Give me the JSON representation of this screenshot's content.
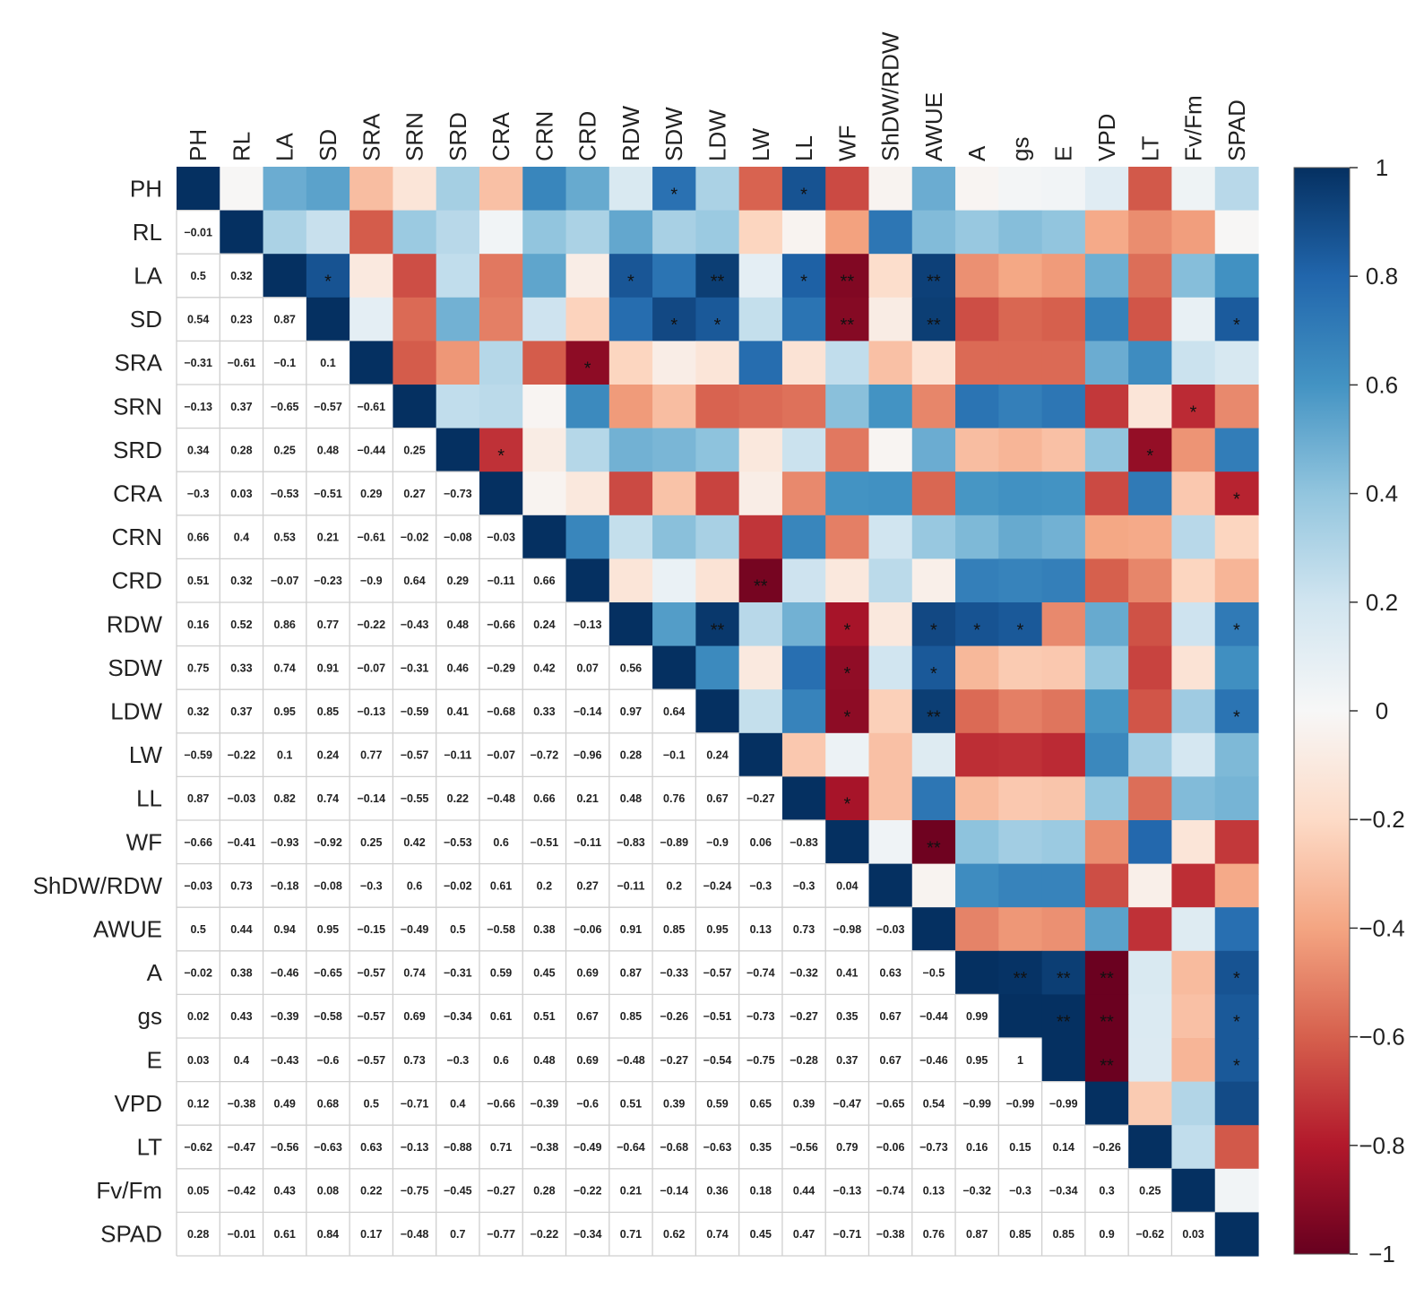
{
  "chart_data": {
    "type": "heatmap",
    "title": "",
    "variables": [
      "PH",
      "RL",
      "LA",
      "SD",
      "SRA",
      "SRN",
      "SRD",
      "CRA",
      "CRN",
      "CRD",
      "RDW",
      "SDW",
      "LDW",
      "LW",
      "LL",
      "WF",
      "ShDW/RDW",
      "AWUE",
      "A",
      "gs",
      "E",
      "VPD",
      "LT",
      "Fv/Fm",
      "SPAD"
    ],
    "lower_triangle_values": [
      [],
      [
        "−0.01"
      ],
      [
        "0.5",
        "0.32"
      ],
      [
        "0.54",
        "0.23",
        "0.87"
      ],
      [
        "−0.31",
        "−0.61",
        "−0.1",
        "0.1"
      ],
      [
        "−0.13",
        "0.37",
        "−0.65",
        "−0.57",
        "−0.61"
      ],
      [
        "0.34",
        "0.28",
        "0.25",
        "0.48",
        "−0.44",
        "0.25"
      ],
      [
        "−0.3",
        "0.03",
        "−0.53",
        "−0.51",
        "0.29",
        "0.27",
        "−0.73"
      ],
      [
        "0.66",
        "0.4",
        "0.53",
        "0.21",
        "−0.61",
        "−0.02",
        "−0.08",
        "−0.03"
      ],
      [
        "0.51",
        "0.32",
        "−0.07",
        "−0.23",
        "−0.9",
        "0.64",
        "0.29",
        "−0.11",
        "0.66"
      ],
      [
        "0.16",
        "0.52",
        "0.86",
        "0.77",
        "−0.22",
        "−0.43",
        "0.48",
        "−0.66",
        "0.24",
        "−0.13"
      ],
      [
        "0.75",
        "0.33",
        "0.74",
        "0.91",
        "−0.07",
        "−0.31",
        "0.46",
        "−0.29",
        "0.42",
        "0.07",
        "0.56"
      ],
      [
        "0.32",
        "0.37",
        "0.95",
        "0.85",
        "−0.13",
        "−0.59",
        "0.41",
        "−0.68",
        "0.33",
        "−0.14",
        "0.97",
        "0.64"
      ],
      [
        "−0.59",
        "−0.22",
        "0.1",
        "0.24",
        "0.77",
        "−0.57",
        "−0.11",
        "−0.07",
        "−0.72",
        "−0.96",
        "0.28",
        "−0.1",
        "0.24"
      ],
      [
        "0.87",
        "−0.03",
        "0.82",
        "0.74",
        "−0.14",
        "−0.55",
        "0.22",
        "−0.48",
        "0.66",
        "0.21",
        "0.48",
        "0.76",
        "0.67",
        "−0.27"
      ],
      [
        "−0.66",
        "−0.41",
        "−0.93",
        "−0.92",
        "0.25",
        "0.42",
        "−0.53",
        "0.6",
        "−0.51",
        "−0.11",
        "−0.83",
        "−0.89",
        "−0.9",
        "0.06",
        "−0.83"
      ],
      [
        "−0.03",
        "0.73",
        "−0.18",
        "−0.08",
        "−0.3",
        "0.6",
        "−0.02",
        "0.61",
        "0.2",
        "0.27",
        "−0.11",
        "0.2",
        "−0.24",
        "−0.3",
        "−0.3",
        "0.04"
      ],
      [
        "0.5",
        "0.44",
        "0.94",
        "0.95",
        "−0.15",
        "−0.49",
        "0.5",
        "−0.58",
        "0.38",
        "−0.06",
        "0.91",
        "0.85",
        "0.95",
        "0.13",
        "0.73",
        "−0.98",
        "−0.03"
      ],
      [
        "−0.02",
        "0.38",
        "−0.46",
        "−0.65",
        "−0.57",
        "0.74",
        "−0.31",
        "0.59",
        "0.45",
        "0.69",
        "0.87",
        "−0.33",
        "−0.57",
        "−0.74",
        "−0.32",
        "0.41",
        "0.63",
        "−0.5"
      ],
      [
        "0.02",
        "0.43",
        "−0.39",
        "−0.58",
        "−0.57",
        "0.69",
        "−0.34",
        "0.61",
        "0.51",
        "0.67",
        "0.85",
        "−0.26",
        "−0.51",
        "−0.73",
        "−0.27",
        "0.35",
        "0.67",
        "−0.44",
        "0.99"
      ],
      [
        "0.03",
        "0.4",
        "−0.43",
        "−0.6",
        "−0.57",
        "0.73",
        "−0.3",
        "0.6",
        "0.48",
        "0.69",
        "−0.48",
        "−0.27",
        "−0.54",
        "−0.75",
        "−0.28",
        "0.37",
        "0.67",
        "−0.46",
        "0.95",
        "1"
      ],
      [
        "0.12",
        "−0.38",
        "0.49",
        "0.68",
        "0.5",
        "−0.71",
        "0.4",
        "−0.66",
        "−0.39",
        "−0.6",
        "0.51",
        "0.39",
        "0.59",
        "0.65",
        "0.39",
        "−0.47",
        "−0.65",
        "0.54",
        "−0.99",
        "−0.99",
        "−0.99"
      ],
      [
        "−0.62",
        "−0.47",
        "−0.56",
        "−0.63",
        "0.63",
        "−0.13",
        "−0.88",
        "0.71",
        "−0.38",
        "−0.49",
        "−0.64",
        "−0.68",
        "−0.63",
        "0.35",
        "−0.56",
        "0.79",
        "−0.06",
        "−0.73",
        "0.16",
        "0.15",
        "0.14",
        "−0.26"
      ],
      [
        "0.05",
        "−0.42",
        "0.43",
        "0.08",
        "0.22",
        "−0.75",
        "−0.45",
        "−0.27",
        "0.28",
        "−0.22",
        "0.21",
        "−0.14",
        "0.36",
        "0.18",
        "0.44",
        "−0.13",
        "−0.74",
        "0.13",
        "−0.32",
        "−0.3",
        "−0.34",
        "0.3",
        "0.25"
      ],
      [
        "0.28",
        "−0.01",
        "0.61",
        "0.84",
        "0.17",
        "−0.48",
        "0.7",
        "−0.77",
        "−0.22",
        "−0.34",
        "0.71",
        "0.62",
        "0.74",
        "0.45",
        "0.47",
        "−0.71",
        "−0.38",
        "0.76",
        "0.87",
        "0.85",
        "0.85",
        "0.9",
        "−0.62",
        "0.03"
      ]
    ],
    "upper_triangle_significance": [
      {
        "row": "PH",
        "col": "SDW",
        "mark": "*"
      },
      {
        "row": "PH",
        "col": "LL",
        "mark": "*"
      },
      {
        "row": "LA",
        "col": "SD",
        "mark": "*"
      },
      {
        "row": "LA",
        "col": "RDW",
        "mark": "*"
      },
      {
        "row": "LA",
        "col": "LDW",
        "mark": "**"
      },
      {
        "row": "LA",
        "col": "LL",
        "mark": "*"
      },
      {
        "row": "LA",
        "col": "WF",
        "mark": "**"
      },
      {
        "row": "LA",
        "col": "AWUE",
        "mark": "**"
      },
      {
        "row": "SD",
        "col": "SDW",
        "mark": "*"
      },
      {
        "row": "SD",
        "col": "LDW",
        "mark": "*"
      },
      {
        "row": "SD",
        "col": "WF",
        "mark": "**"
      },
      {
        "row": "SD",
        "col": "AWUE",
        "mark": "**"
      },
      {
        "row": "SD",
        "col": "SPAD",
        "mark": "*"
      },
      {
        "row": "SRA",
        "col": "CRD",
        "mark": "*"
      },
      {
        "row": "SRN",
        "col": "Fv/Fm",
        "mark": "*"
      },
      {
        "row": "SRD",
        "col": "CRA",
        "mark": "*"
      },
      {
        "row": "SRD",
        "col": "LT",
        "mark": "*"
      },
      {
        "row": "CRA",
        "col": "SPAD",
        "mark": "*"
      },
      {
        "row": "CRD",
        "col": "LW",
        "mark": "**"
      },
      {
        "row": "RDW",
        "col": "LDW",
        "mark": "**"
      },
      {
        "row": "RDW",
        "col": "WF",
        "mark": "*"
      },
      {
        "row": "RDW",
        "col": "AWUE",
        "mark": "*"
      },
      {
        "row": "RDW",
        "col": "A",
        "mark": "*"
      },
      {
        "row": "RDW",
        "col": "gs",
        "mark": "*"
      },
      {
        "row": "RDW",
        "col": "SPAD",
        "mark": "*"
      },
      {
        "row": "SDW",
        "col": "WF",
        "mark": "*"
      },
      {
        "row": "SDW",
        "col": "AWUE",
        "mark": "*"
      },
      {
        "row": "LDW",
        "col": "WF",
        "mark": "*"
      },
      {
        "row": "LDW",
        "col": "AWUE",
        "mark": "**"
      },
      {
        "row": "LDW",
        "col": "SPAD",
        "mark": "*"
      },
      {
        "row": "LL",
        "col": "WF",
        "mark": "*"
      },
      {
        "row": "WF",
        "col": "AWUE",
        "mark": "**"
      },
      {
        "row": "A",
        "col": "gs",
        "mark": "**"
      },
      {
        "row": "A",
        "col": "E",
        "mark": "**"
      },
      {
        "row": "A",
        "col": "VPD",
        "mark": "**"
      },
      {
        "row": "A",
        "col": "SPAD",
        "mark": "*"
      },
      {
        "row": "gs",
        "col": "E",
        "mark": "**"
      },
      {
        "row": "gs",
        "col": "VPD",
        "mark": "**"
      },
      {
        "row": "gs",
        "col": "SPAD",
        "mark": "*"
      },
      {
        "row": "E",
        "col": "VPD",
        "mark": "**"
      },
      {
        "row": "E",
        "col": "SPAD",
        "mark": "*"
      }
    ],
    "diagonal": 1,
    "color_scale": {
      "range": [
        -1,
        1
      ],
      "ticks": [
        "1",
        "0.8",
        "0.6",
        "0.4",
        "0.2",
        "0",
        "−0.2",
        "−0.4",
        "−0.6",
        "−0.8",
        "−1"
      ],
      "stops": [
        {
          "value": -1.0,
          "color": "#67001f"
        },
        {
          "value": -0.8,
          "color": "#b2182b"
        },
        {
          "value": -0.6,
          "color": "#d6604d"
        },
        {
          "value": -0.4,
          "color": "#f4a582"
        },
        {
          "value": -0.2,
          "color": "#fddbc7"
        },
        {
          "value": 0.0,
          "color": "#f7f7f7"
        },
        {
          "value": 0.2,
          "color": "#d1e5f0"
        },
        {
          "value": 0.4,
          "color": "#92c5de"
        },
        {
          "value": 0.6,
          "color": "#4393c3"
        },
        {
          "value": 0.8,
          "color": "#2166ac"
        },
        {
          "value": 1.0,
          "color": "#053061"
        }
      ]
    },
    "legend_position": "right"
  }
}
